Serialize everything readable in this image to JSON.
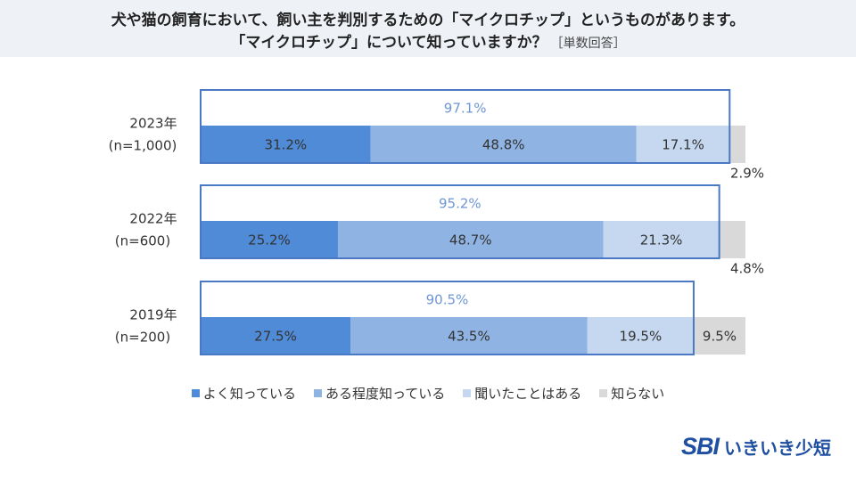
{
  "header": {
    "line1": "犬や猫の飼育において、飼い主を判別するための「マイクロチップ」というものがあります。",
    "line2": "「マイクロチップ」について知っていますか？",
    "note": "［単数回答］"
  },
  "chart_data": {
    "type": "bar",
    "orientation": "horizontal-stacked-100",
    "categories": [
      {
        "year": "2023年",
        "n": "(n=1,000)",
        "known_total": "97.1%"
      },
      {
        "year": "2022年",
        "n": "(n=600)",
        "known_total": "95.2%"
      },
      {
        "year": "2019年",
        "n": "(n=200)",
        "known_total": "90.5%"
      }
    ],
    "series": [
      {
        "name": "よく知っている",
        "color": "#4f8bd6",
        "values": [
          31.2,
          25.2,
          27.5
        ],
        "labels": [
          "31.2%",
          "25.2%",
          "27.5%"
        ]
      },
      {
        "name": "ある程度知っている",
        "color": "#8fb4e3",
        "values": [
          48.8,
          48.7,
          43.5
        ],
        "labels": [
          "48.8%",
          "48.7%",
          "43.5%"
        ]
      },
      {
        "name": "聞いたことはある",
        "color": "#c6d8f0",
        "values": [
          17.1,
          21.3,
          19.5
        ],
        "labels": [
          "17.1%",
          "21.3%",
          "19.5%"
        ]
      },
      {
        "name": "知らない",
        "color": "#d9d9d9",
        "values": [
          2.9,
          4.8,
          9.5
        ],
        "labels": [
          "2.9%",
          "4.8%",
          "9.5%"
        ]
      }
    ],
    "xlim": [
      0,
      100
    ],
    "known_box_color": "#4a78c4",
    "known_label_color": "#6f96d4"
  },
  "logo": {
    "mark": "SBI",
    "text": "いきいき少短"
  }
}
